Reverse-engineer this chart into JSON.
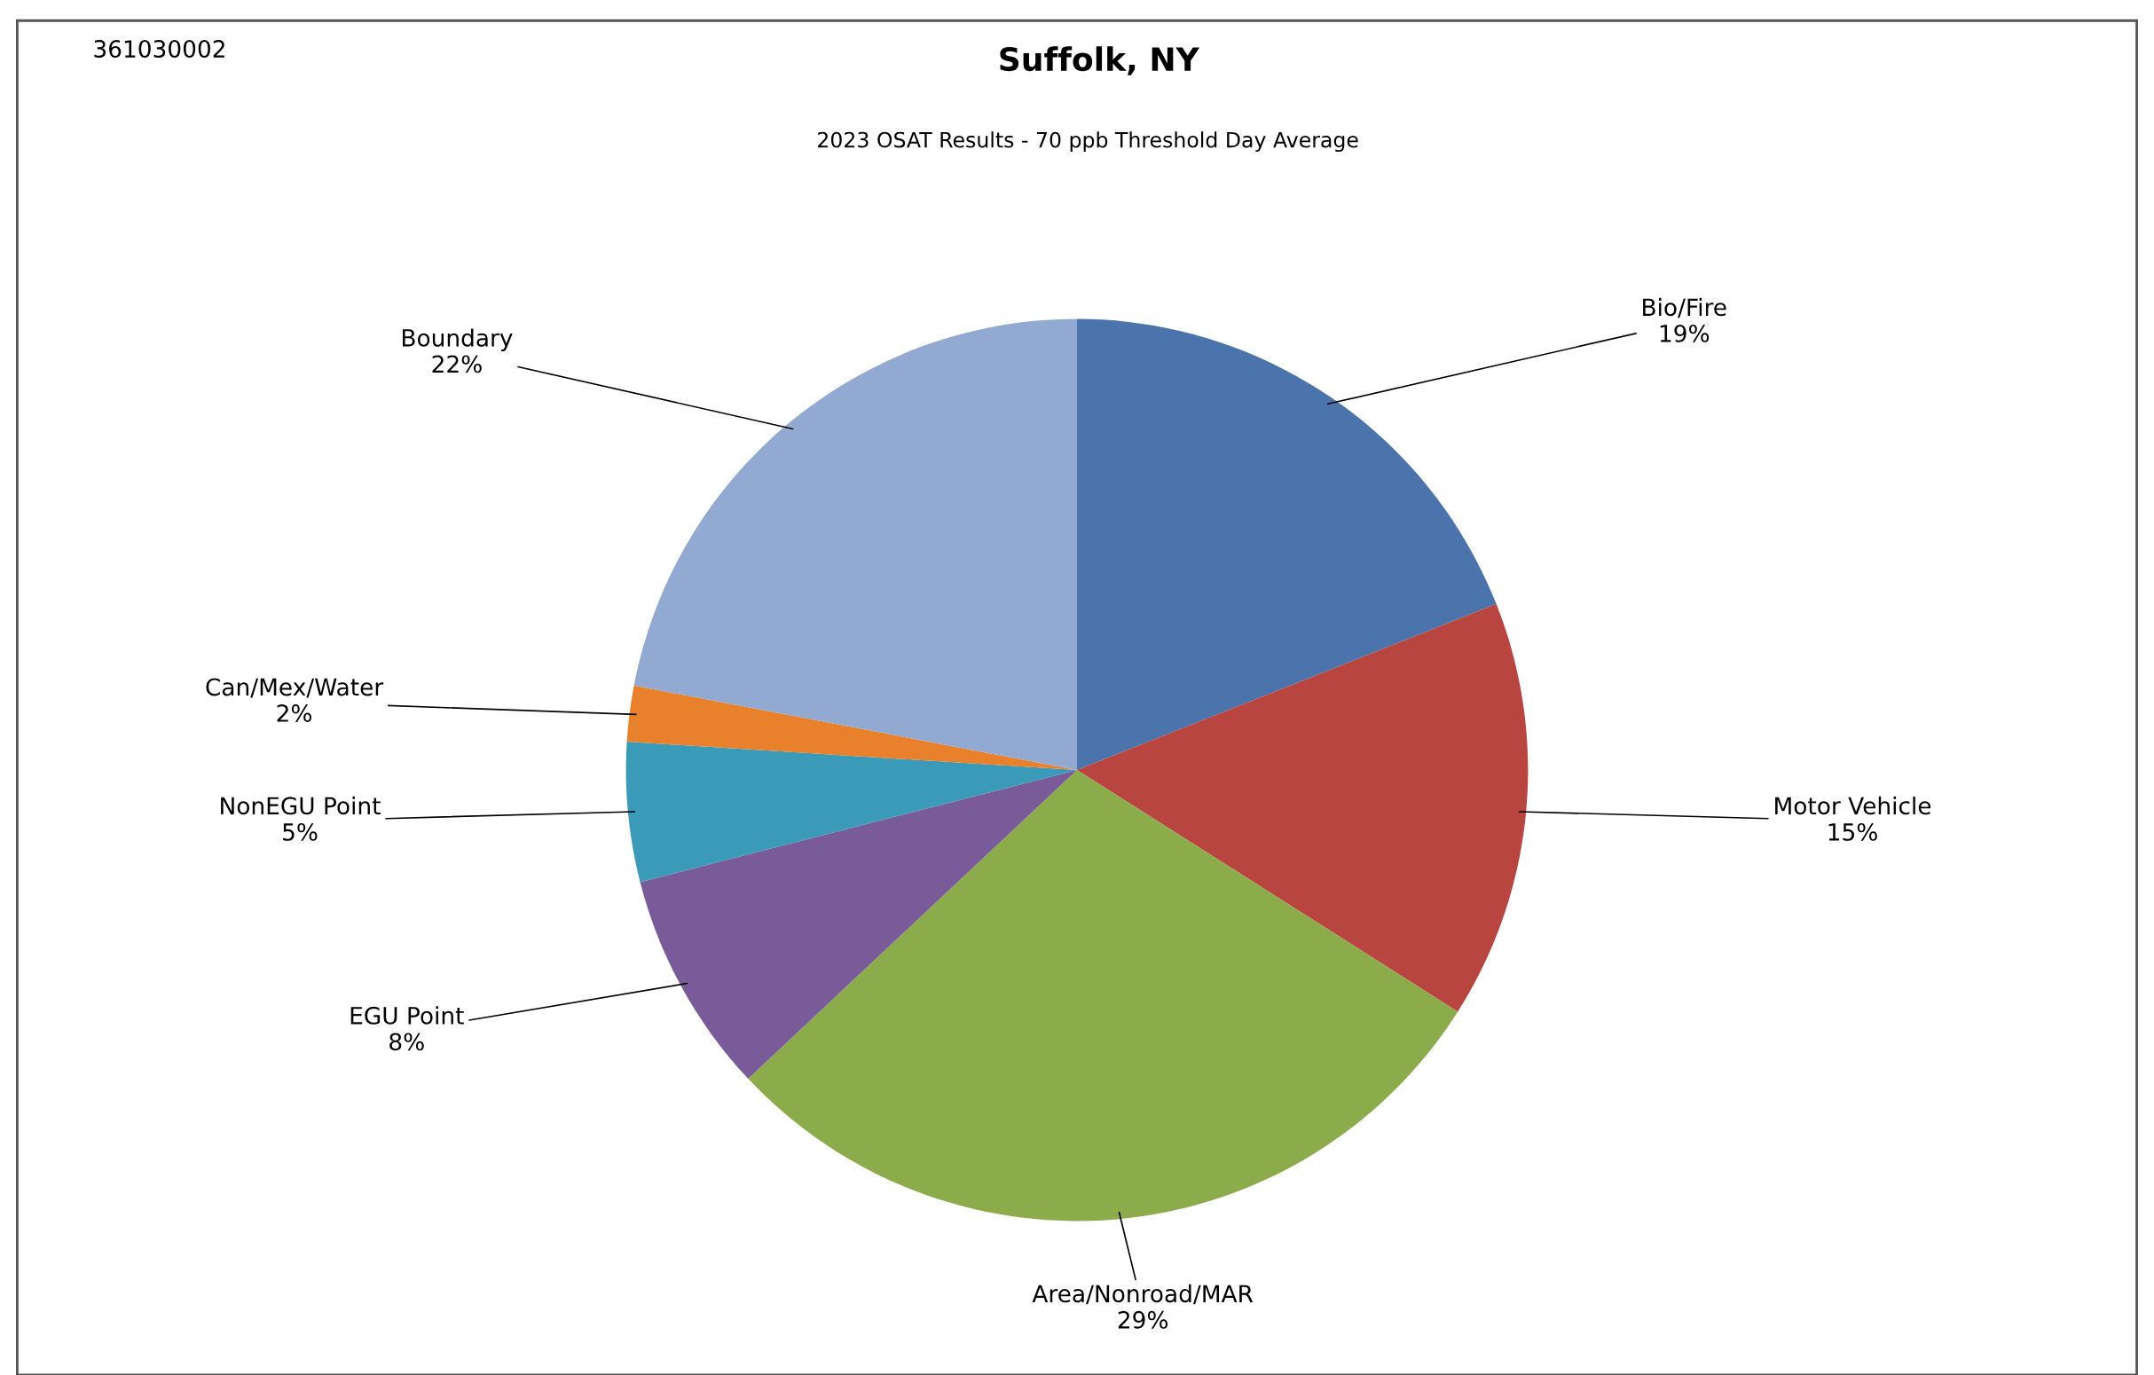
{
  "chart_data": {
    "type": "pie",
    "title": "Suffolk, NY",
    "subtitle": "2023 OSAT Results - 70 ppb Threshold Day Average",
    "annotations": [
      "361030002"
    ],
    "categories": [
      "Bio/Fire",
      "Motor Vehicle",
      "Area/Nonroad/MAR",
      "EGU Point",
      "NonEGU Point",
      "Can/Mex/Water",
      "Boundary"
    ],
    "values": [
      19,
      15,
      29,
      8,
      5,
      2,
      22
    ],
    "value_labels": [
      "19%",
      "15%",
      "29%",
      "8%",
      "5%",
      "2%",
      "22%"
    ],
    "colors": [
      "#4a74ab",
      "#b94541",
      "#8cac4b",
      "#7a5b99",
      "#3a9ab8",
      "#e9812c",
      "#92a9d1"
    ],
    "legend": false
  }
}
